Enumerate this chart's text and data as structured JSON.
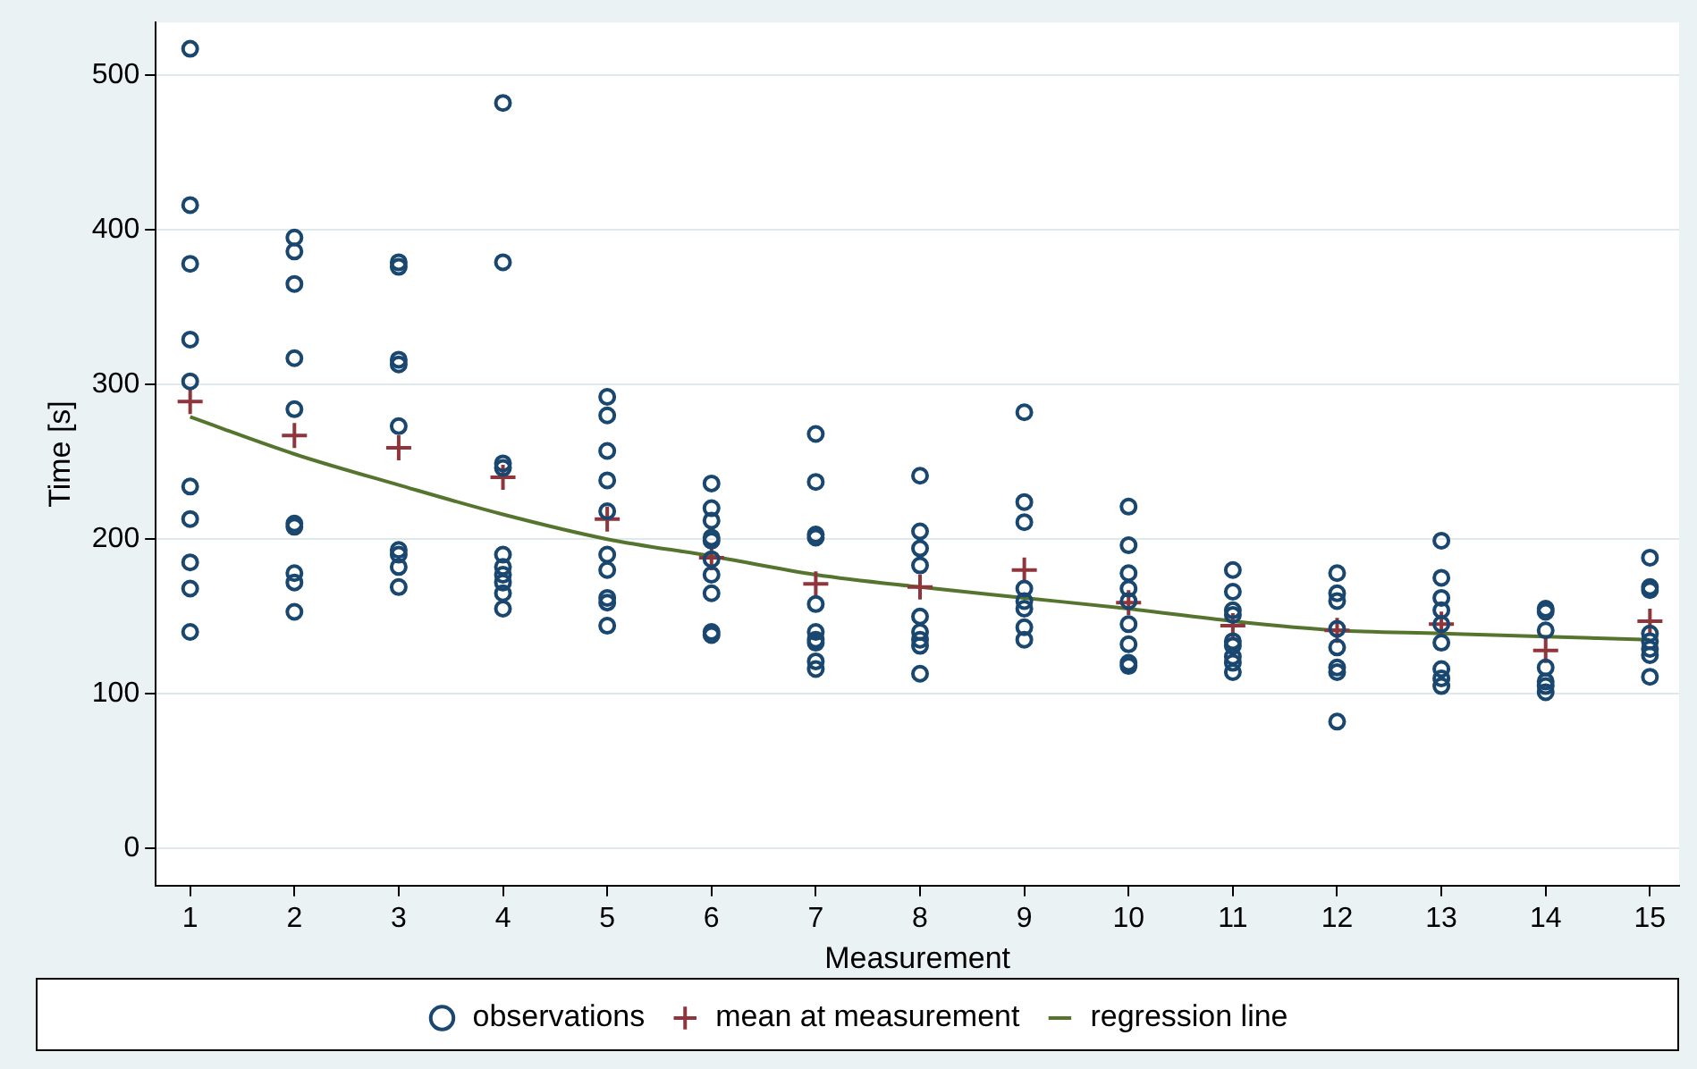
{
  "chart_data": {
    "type": "scatter",
    "xlabel": "Measurement",
    "ylabel": "Time [s]",
    "xlim": [
      0.67,
      15.28
    ],
    "xticks": [
      1,
      2,
      3,
      4,
      5,
      6,
      7,
      8,
      9,
      10,
      11,
      12,
      13,
      14,
      15
    ],
    "ylim": [
      -24,
      534
    ],
    "yticks": [
      0,
      100,
      200,
      300,
      400,
      500
    ],
    "grid": "y",
    "legend": "bottom",
    "series": [
      {
        "name": "observations",
        "type": "scatter",
        "marker": "circle",
        "color": "#1a476f",
        "x": [
          1,
          1,
          1,
          1,
          1,
          1,
          1,
          1,
          1,
          1,
          2,
          2,
          2,
          2,
          2,
          2,
          2,
          2,
          2,
          2,
          3,
          3,
          3,
          3,
          3,
          3,
          3,
          3,
          3,
          4,
          4,
          4,
          4,
          4,
          4,
          4,
          4,
          4,
          4,
          5,
          5,
          5,
          5,
          5,
          5,
          5,
          5,
          5,
          5,
          6,
          6,
          6,
          6,
          6,
          6,
          6,
          6,
          6,
          6,
          7,
          7,
          7,
          7,
          7,
          7,
          7,
          7,
          7,
          7,
          8,
          8,
          8,
          8,
          8,
          8,
          8,
          8,
          8,
          9,
          9,
          9,
          9,
          9,
          9,
          9,
          9,
          10,
          10,
          10,
          10,
          10,
          10,
          10,
          10,
          10,
          11,
          11,
          11,
          11,
          11,
          11,
          11,
          11,
          11,
          12,
          12,
          12,
          12,
          12,
          12,
          12,
          12,
          13,
          13,
          13,
          13,
          13,
          13,
          13,
          13,
          13,
          14,
          14,
          14,
          14,
          14,
          14,
          14,
          15,
          15,
          15,
          15,
          15,
          15,
          15,
          15
        ],
        "values": [
          517,
          416,
          378,
          329,
          302,
          234,
          213,
          185,
          168,
          140,
          395,
          386,
          365,
          317,
          284,
          210,
          208,
          178,
          172,
          153,
          379,
          376,
          316,
          313,
          273,
          193,
          190,
          182,
          169,
          482,
          379,
          249,
          246,
          190,
          182,
          177,
          172,
          165,
          155,
          292,
          280,
          257,
          238,
          218,
          190,
          180,
          162,
          159,
          144,
          236,
          220,
          212,
          201,
          199,
          187,
          177,
          165,
          140,
          138,
          268,
          237,
          203,
          201,
          158,
          140,
          135,
          133,
          121,
          116,
          241,
          205,
          194,
          183,
          150,
          140,
          135,
          131,
          113,
          282,
          224,
          211,
          168,
          160,
          155,
          143,
          135,
          221,
          196,
          178,
          168,
          160,
          145,
          132,
          120,
          118,
          180,
          166,
          154,
          151,
          134,
          131,
          124,
          120,
          114,
          178,
          165,
          160,
          142,
          130,
          117,
          114,
          82,
          199,
          175,
          162,
          154,
          145,
          133,
          116,
          110,
          105,
          155,
          153,
          141,
          117,
          108,
          105,
          101,
          188,
          169,
          167,
          139,
          134,
          129,
          125,
          111
        ]
      },
      {
        "name": "mean at measurement",
        "type": "scatter",
        "marker": "cross",
        "color": "#90353b",
        "x": [
          1,
          2,
          3,
          4,
          5,
          6,
          7,
          8,
          9,
          10,
          11,
          12,
          13,
          14,
          15
        ],
        "values": [
          289,
          267,
          259,
          240,
          213,
          188,
          171,
          169,
          180,
          159,
          144,
          141,
          145,
          128,
          147
        ]
      },
      {
        "name": "regression line",
        "type": "line",
        "marker": "none",
        "color": "#55752f",
        "x": [
          1,
          2,
          3,
          4,
          5,
          6,
          7,
          8,
          9,
          10,
          11,
          12,
          13,
          14,
          15
        ],
        "values": [
          279,
          255,
          235,
          216,
          200,
          189,
          177,
          169,
          162,
          155,
          147,
          141,
          139,
          137,
          135
        ]
      }
    ]
  }
}
